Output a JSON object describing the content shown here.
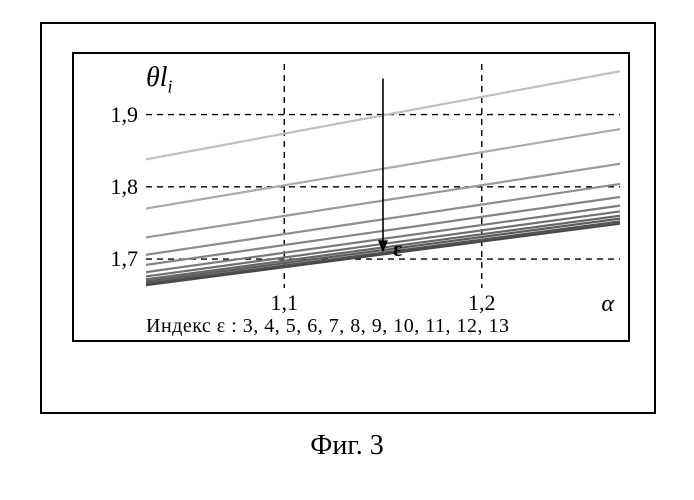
{
  "chart": {
    "type": "line",
    "xlim": [
      1.03,
      1.27
    ],
    "ylim": [
      1.66,
      1.97
    ],
    "yticks": [
      1.7,
      1.8,
      1.9
    ],
    "ytick_labels": [
      "1,7",
      "1,8",
      "1,9"
    ],
    "xticks": [
      1.1,
      1.2
    ],
    "xtick_labels": [
      "1,1",
      "1,2"
    ],
    "ylabel_html": "θl<sub>i</sub>",
    "xlabel": "α",
    "grid_color": "#000000",
    "background": "#ffffff",
    "arrow": {
      "x": 1.15,
      "y_top": 1.95,
      "y_bot": 1.712,
      "label": "ε",
      "label_dx": 10,
      "label_dy": 4
    },
    "series": [
      {
        "y0": 1.838,
        "y1": 1.96,
        "color": "#c0c0c0",
        "w": 2.2
      },
      {
        "y0": 1.77,
        "y1": 1.88,
        "color": "#aaaaaa",
        "w": 2.2
      },
      {
        "y0": 1.73,
        "y1": 1.832,
        "color": "#9a9a9a",
        "w": 2.2
      },
      {
        "y0": 1.706,
        "y1": 1.804,
        "color": "#8e8e8e",
        "w": 2.2
      },
      {
        "y0": 1.692,
        "y1": 1.786,
        "color": "#848484",
        "w": 2.2
      },
      {
        "y0": 1.682,
        "y1": 1.774,
        "color": "#7a7a7a",
        "w": 2.2
      },
      {
        "y0": 1.676,
        "y1": 1.766,
        "color": "#707070",
        "w": 2.2
      },
      {
        "y0": 1.672,
        "y1": 1.76,
        "color": "#666666",
        "w": 2.2
      },
      {
        "y0": 1.669,
        "y1": 1.756,
        "color": "#5c5c5c",
        "w": 2.2
      },
      {
        "y0": 1.666,
        "y1": 1.752,
        "color": "#525252",
        "w": 2.2
      },
      {
        "y0": 1.664,
        "y1": 1.749,
        "color": "#484848",
        "w": 2.2
      }
    ],
    "index_text": "Индекс ε : 3, 4, 5, 6, 7, 8, 9, 10, 11, 12, 13"
  },
  "caption": "Фиг. 3"
}
